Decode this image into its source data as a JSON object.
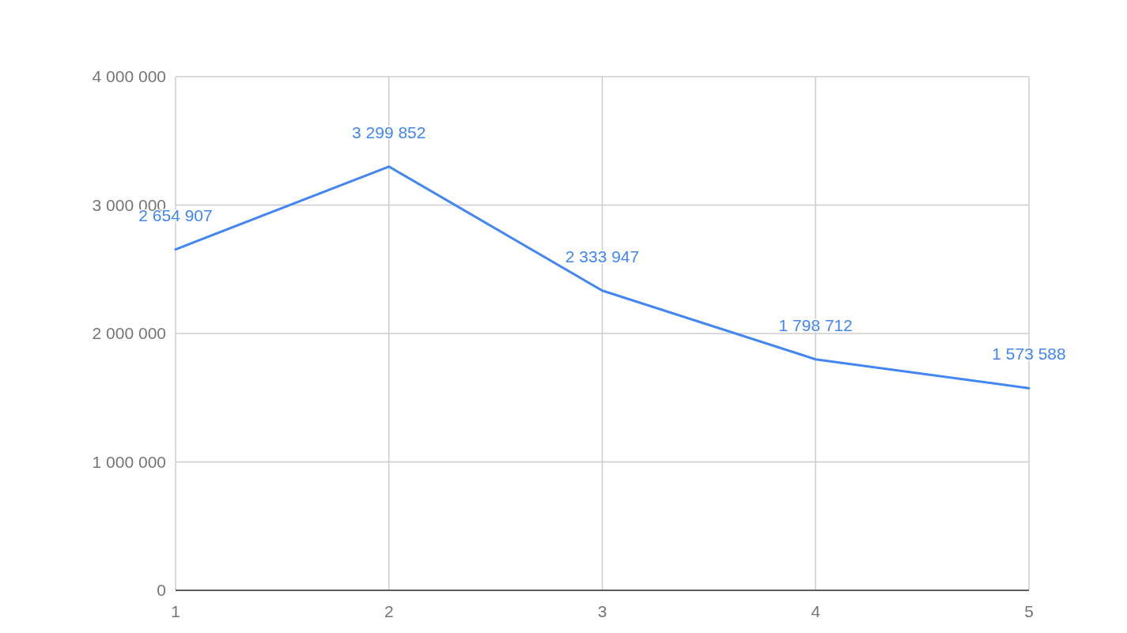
{
  "chart_data": {
    "type": "line",
    "x": [
      1,
      2,
      3,
      4,
      5
    ],
    "series": [
      {
        "color": "#4285f4",
        "values": [
          2654907,
          3299852,
          2333947,
          1798712,
          1573588
        ],
        "value_labels": [
          "2 654 907",
          "3 299 852",
          "2 333 947",
          "1 798 712",
          "1 573 588"
        ]
      }
    ],
    "xlim": [
      1,
      5
    ],
    "xticks": [
      1,
      2,
      3,
      4,
      5
    ],
    "ylim": [
      0,
      4000000
    ],
    "yticks": [
      {
        "value": 0,
        "label": "0"
      },
      {
        "value": 1000000,
        "label": "1 000 000"
      },
      {
        "value": 2000000,
        "label": "2 000 000"
      },
      {
        "value": 3000000,
        "label": "3 000 000"
      },
      {
        "value": 4000000,
        "label": "4 000 000"
      }
    ],
    "grid": true,
    "marker": "none",
    "line_style": "solid"
  }
}
